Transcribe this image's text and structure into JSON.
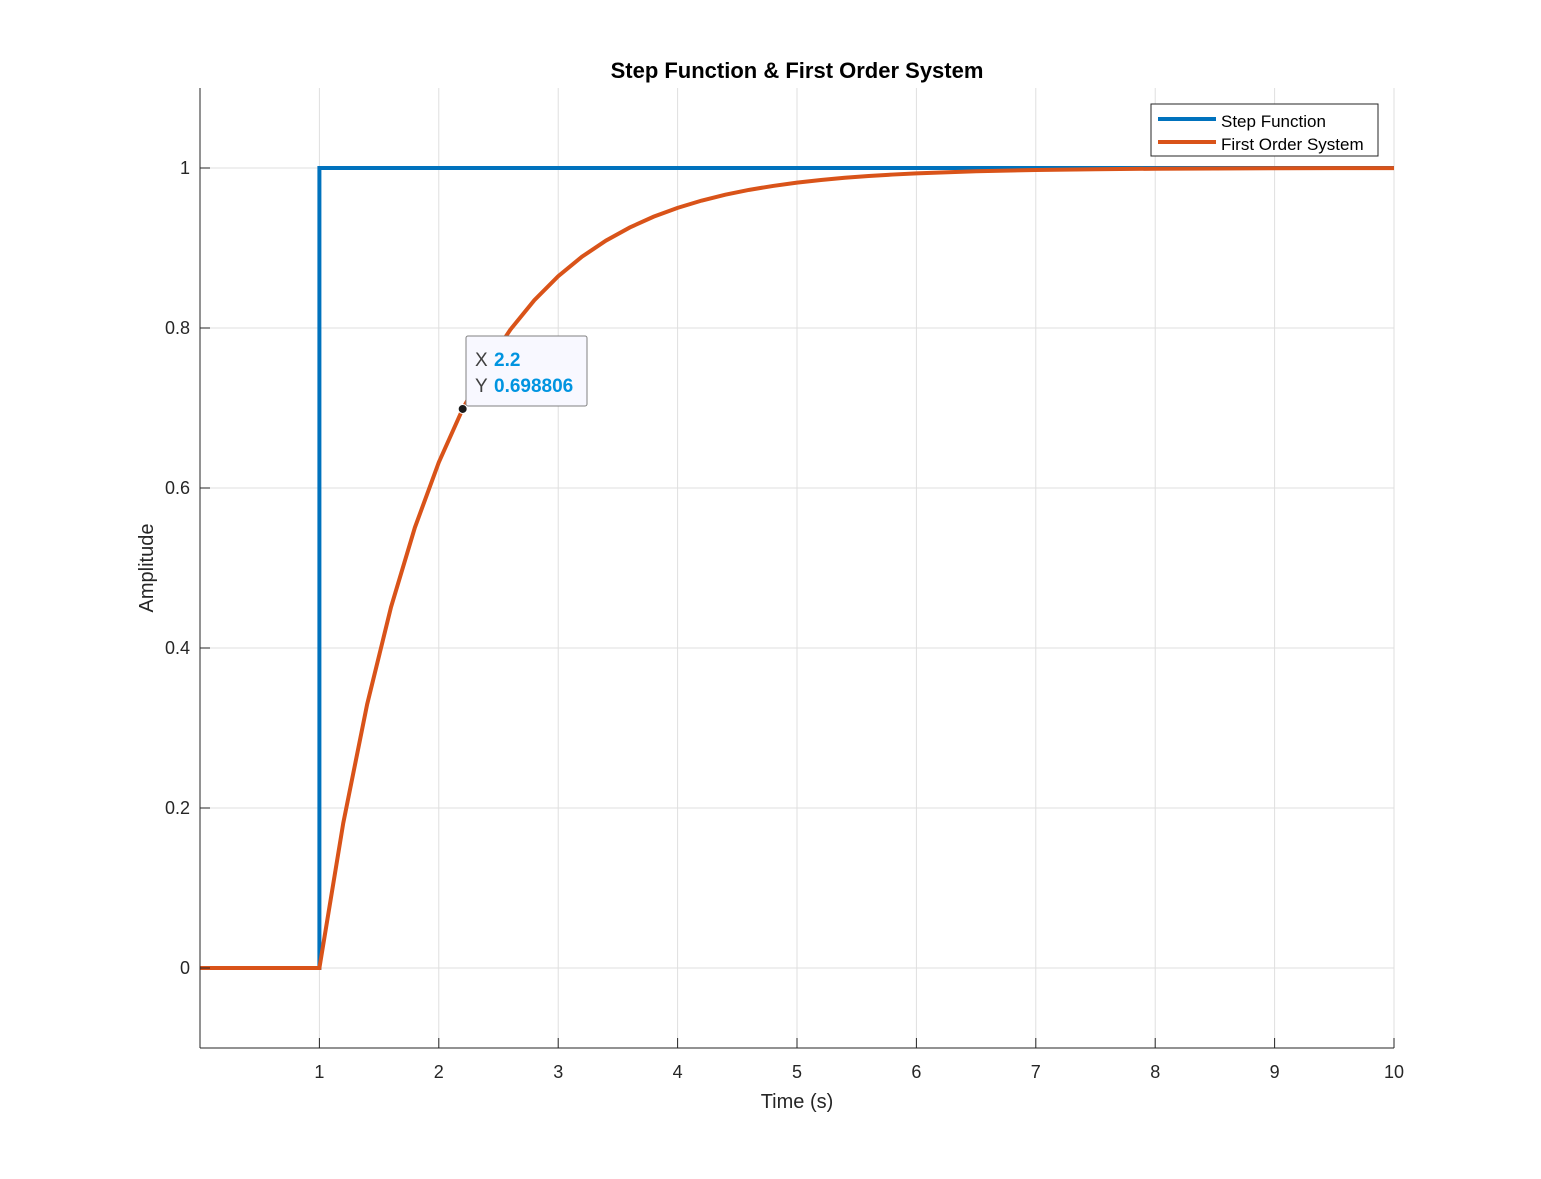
{
  "chart_data": {
    "type": "line",
    "title": "Step Function & First Order System",
    "xlabel": "Time (s)",
    "ylabel": "Amplitude",
    "xlim": [
      0,
      10
    ],
    "ylim": [
      -0.1,
      1.1
    ],
    "xticks": [
      1,
      2,
      3,
      4,
      5,
      6,
      7,
      8,
      9,
      10
    ],
    "xtick_labels": [
      "1",
      "2",
      "3",
      "4",
      "5",
      "6",
      "7",
      "8",
      "9",
      "10"
    ],
    "yticks": [
      0,
      0.2,
      0.4,
      0.6,
      0.8,
      1
    ],
    "ytick_labels": [
      "0",
      "0.2",
      "0.4",
      "0.6",
      "0.8",
      "1"
    ],
    "grid": true,
    "legend_position": "top-right",
    "series": [
      {
        "name": "Step Function",
        "color": "#0072bd",
        "x": [
          0,
          1,
          1,
          10
        ],
        "y": [
          0,
          0,
          1,
          1
        ]
      },
      {
        "name": "First Order System",
        "color": "#d95319",
        "x": [
          0,
          1,
          1.2,
          1.4,
          1.6,
          1.8,
          2,
          2.2,
          2.4,
          2.6,
          2.8,
          3,
          3.2,
          3.4,
          3.6,
          3.8,
          4,
          4.2,
          4.4,
          4.6,
          4.8,
          5,
          5.2,
          5.4,
          5.6,
          5.8,
          6,
          6.5,
          7,
          7.5,
          8,
          8.5,
          9,
          9.5,
          10
        ],
        "y": [
          0,
          0,
          0.1813,
          0.3297,
          0.4512,
          0.5507,
          0.6321,
          0.6988,
          0.7534,
          0.7981,
          0.8347,
          0.8647,
          0.8892,
          0.9093,
          0.9257,
          0.9392,
          0.9502,
          0.9592,
          0.9666,
          0.9727,
          0.9776,
          0.9817,
          0.985,
          0.9878,
          0.99,
          0.9918,
          0.9933,
          0.9959,
          0.9975,
          0.9985,
          0.9991,
          0.9994,
          0.9997,
          0.9998,
          0.9999
        ]
      }
    ],
    "datatip": {
      "x_key": "X",
      "x_value": "2.2",
      "y_key": "Y",
      "y_value": "0.698806",
      "x": 2.2,
      "y": 0.698806,
      "value_color": "#0094e0"
    }
  }
}
